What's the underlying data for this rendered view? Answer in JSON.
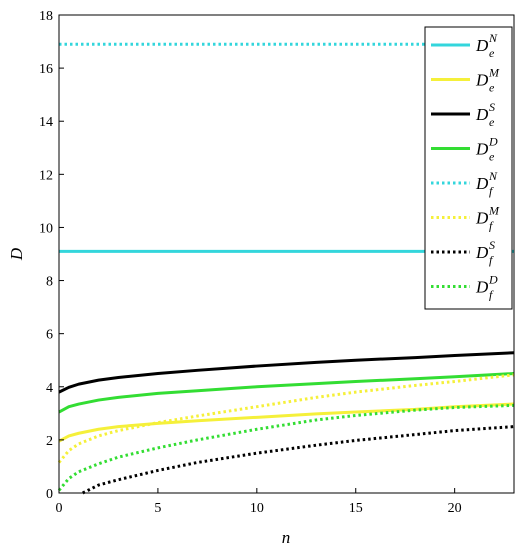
{
  "chart_data": {
    "type": "line",
    "title": "",
    "xlabel": "n",
    "ylabel": "D",
    "xlim": [
      0,
      23
    ],
    "ylim": [
      0,
      18
    ],
    "xticks": [
      0,
      5,
      10,
      15,
      20
    ],
    "yticks": [
      0,
      2,
      4,
      6,
      8,
      10,
      12,
      14,
      16,
      18
    ],
    "grid": false,
    "legend_position": "top-right",
    "series": [
      {
        "name": "D_e^N",
        "base": "D",
        "sub": "e",
        "sup": "N",
        "color": "#33d6dc",
        "dash": "solid",
        "x": [
          0,
          23
        ],
        "y": [
          9.1,
          9.1
        ]
      },
      {
        "name": "D_e^M",
        "base": "D",
        "sub": "e",
        "sup": "M",
        "color": "#f5f03a",
        "dash": "solid",
        "x": [
          0,
          0.5,
          1,
          2,
          3,
          5,
          7,
          10,
          13,
          15,
          18,
          20,
          23
        ],
        "y": [
          1.95,
          2.15,
          2.25,
          2.4,
          2.5,
          2.62,
          2.72,
          2.85,
          2.98,
          3.05,
          3.15,
          3.25,
          3.35
        ]
      },
      {
        "name": "D_e^S",
        "base": "D",
        "sub": "e",
        "sup": "S",
        "color": "#000000",
        "dash": "solid",
        "x": [
          0,
          0.5,
          1,
          2,
          3,
          5,
          7,
          10,
          13,
          15,
          18,
          20,
          23
        ],
        "y": [
          3.8,
          3.98,
          4.1,
          4.25,
          4.35,
          4.5,
          4.62,
          4.78,
          4.92,
          5.0,
          5.1,
          5.18,
          5.28
        ]
      },
      {
        "name": "D_e^D",
        "base": "D",
        "sub": "e",
        "sup": "D",
        "color": "#33dd33",
        "dash": "solid",
        "x": [
          0,
          0.5,
          1,
          2,
          3,
          5,
          7,
          10,
          13,
          15,
          18,
          20,
          23
        ],
        "y": [
          3.05,
          3.25,
          3.35,
          3.5,
          3.6,
          3.75,
          3.85,
          4.0,
          4.12,
          4.2,
          4.3,
          4.38,
          4.5
        ]
      },
      {
        "name": "D_f^N",
        "base": "D",
        "sub": "f",
        "sup": "N",
        "color": "#33d6dc",
        "dash": "dotted",
        "x": [
          0,
          23
        ],
        "y": [
          16.9,
          16.9
        ]
      },
      {
        "name": "D_f^M",
        "base": "D",
        "sub": "f",
        "sup": "M",
        "color": "#f5f03a",
        "dash": "dotted",
        "x": [
          0,
          0.5,
          1,
          2,
          3,
          5,
          7,
          10,
          13,
          15,
          18,
          20,
          23
        ],
        "y": [
          1.15,
          1.6,
          1.85,
          2.15,
          2.35,
          2.65,
          2.9,
          3.25,
          3.6,
          3.8,
          4.05,
          4.2,
          4.45
        ]
      },
      {
        "name": "D_f^S",
        "base": "D",
        "sub": "f",
        "sup": "S",
        "color": "#000000",
        "dash": "dotted",
        "x": [
          1.2,
          2,
          3,
          5,
          7,
          10,
          13,
          15,
          18,
          20,
          23
        ],
        "y": [
          0.0,
          0.3,
          0.5,
          0.85,
          1.15,
          1.5,
          1.8,
          1.98,
          2.2,
          2.35,
          2.5
        ]
      },
      {
        "name": "D_f^D",
        "base": "D",
        "sub": "f",
        "sup": "D",
        "color": "#33dd33",
        "dash": "dotted",
        "x": [
          0,
          0.5,
          1,
          2,
          3,
          5,
          7,
          10,
          13,
          15,
          18,
          20,
          23
        ],
        "y": [
          0.1,
          0.55,
          0.8,
          1.1,
          1.35,
          1.7,
          2.0,
          2.4,
          2.75,
          2.92,
          3.12,
          3.22,
          3.3
        ]
      }
    ]
  }
}
